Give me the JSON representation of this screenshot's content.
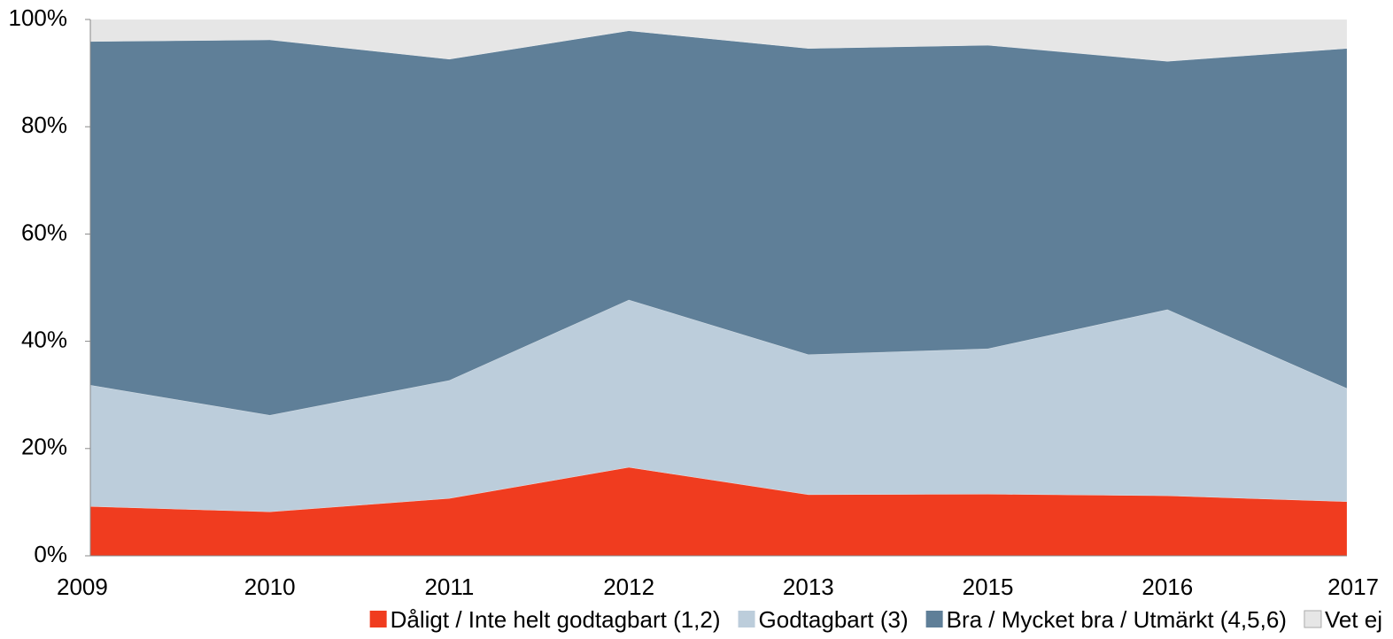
{
  "chart_data": {
    "type": "stacked_area",
    "categories": [
      "2009",
      "2010",
      "2011",
      "2012",
      "2013",
      "2015",
      "2016",
      "2017"
    ],
    "series": [
      {
        "name": "Dåligt / Inte helt godtagbart (1,2)",
        "color": "#f03c1f",
        "values": [
          9.2,
          8.2,
          10.7,
          16.5,
          11.4,
          11.5,
          11.2,
          10.1
        ]
      },
      {
        "name": "Godtagbart (3)",
        "color": "#bccddb",
        "values": [
          22.6,
          18.0,
          22.0,
          31.2,
          26.1,
          27.1,
          34.7,
          21.1
        ]
      },
      {
        "name": "Bra / Mycket bra / Utmärkt (4,5,6)",
        "color": "#5f7f98",
        "values": [
          64.1,
          70.0,
          59.9,
          50.2,
          57.1,
          56.6,
          46.3,
          63.4
        ]
      },
      {
        "name": "Vet ej",
        "color": "#e6e6e6",
        "values": [
          4.1,
          3.8,
          7.4,
          2.1,
          5.4,
          4.8,
          7.8,
          5.4
        ]
      }
    ],
    "ylim": [
      0,
      100
    ],
    "yticks": [
      {
        "value": 0,
        "label": "0%"
      },
      {
        "value": 20,
        "label": "20%"
      },
      {
        "value": 40,
        "label": "40%"
      },
      {
        "value": 60,
        "label": "60%"
      },
      {
        "value": 80,
        "label": "80%"
      },
      {
        "value": 100,
        "label": "100%"
      }
    ],
    "legend": "bottom"
  }
}
